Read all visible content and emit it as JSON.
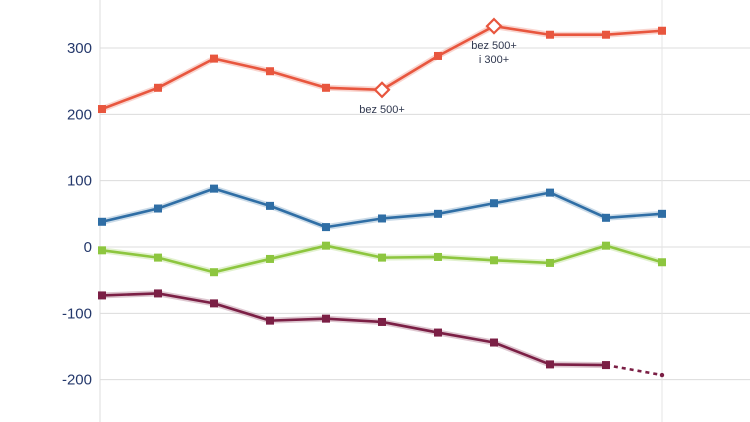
{
  "chart_data": {
    "type": "line",
    "title": "",
    "xlabel": "",
    "ylabel": "",
    "ylim": [
      -220,
      370
    ],
    "yticks": [
      -200,
      -100,
      0,
      100,
      200,
      300
    ],
    "ytick_labels": [
      "-200",
      "-100",
      "0",
      "100",
      "200",
      "300"
    ],
    "grid": true,
    "legend": "none",
    "x": [
      1,
      2,
      3,
      4,
      5,
      6,
      7,
      8,
      9,
      10,
      11
    ],
    "series": [
      {
        "color": "#e8563e",
        "values": [
          208,
          240,
          284,
          265,
          240,
          237,
          288,
          333,
          320,
          320,
          326
        ],
        "hollow_points": [
          5,
          7
        ]
      },
      {
        "color": "#2f6ea5",
        "values": [
          38,
          58,
          88,
          62,
          30,
          43,
          50,
          66,
          82,
          44,
          50
        ]
      },
      {
        "color": "#8dc63f",
        "values": [
          -5,
          -16,
          -38,
          -18,
          2,
          -16,
          -15,
          -20,
          -24,
          2,
          -23
        ]
      },
      {
        "color": "#7b1f45",
        "values": [
          -73,
          -70,
          -85,
          -111,
          -108,
          -113,
          -129,
          -144,
          -177,
          -178,
          -193
        ],
        "dashed_last_segment": true,
        "last_point_marker": false
      }
    ],
    "annotations": [
      {
        "series": 0,
        "point": 5,
        "lines": [
          "bez 500+"
        ]
      },
      {
        "series": 0,
        "point": 7,
        "lines": [
          "bez 500+",
          "i 300+"
        ]
      }
    ]
  }
}
